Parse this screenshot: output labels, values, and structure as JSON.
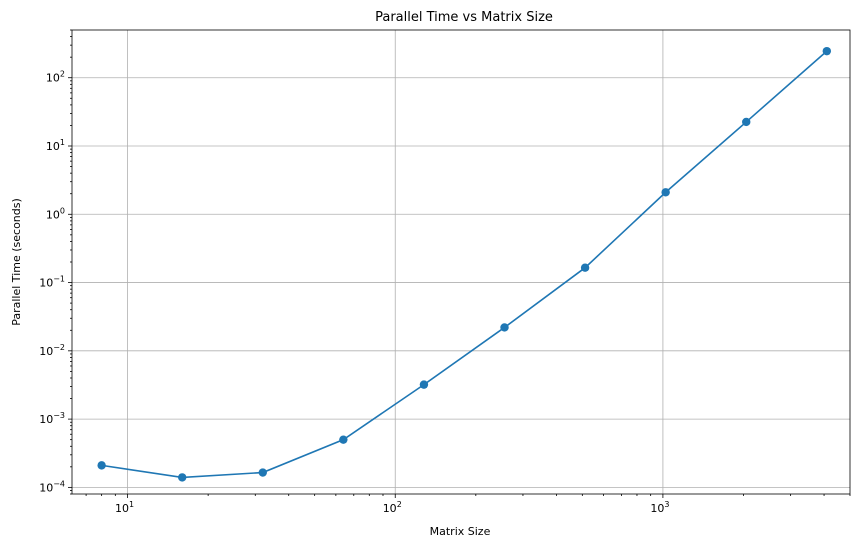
{
  "chart_data": {
    "type": "line",
    "title": "Parallel Time vs Matrix Size",
    "xlabel": "Matrix Size",
    "ylabel": "Parallel Time (seconds)",
    "x_scale": "log",
    "y_scale": "log",
    "xlim": [
      6.2,
      5000
    ],
    "ylim": [
      8e-05,
      500
    ],
    "x_ticks": [
      {
        "value": 10,
        "base": "10",
        "exp": "1"
      },
      {
        "value": 100,
        "base": "10",
        "exp": "2"
      },
      {
        "value": 1000,
        "base": "10",
        "exp": "3"
      }
    ],
    "y_ticks": [
      {
        "value": 0.0001,
        "base": "10",
        "exp": "−4"
      },
      {
        "value": 0.001,
        "base": "10",
        "exp": "−3"
      },
      {
        "value": 0.01,
        "base": "10",
        "exp": "−2"
      },
      {
        "value": 0.1,
        "base": "10",
        "exp": "−1"
      },
      {
        "value": 1,
        "base": "10",
        "exp": "0"
      },
      {
        "value": 10,
        "base": "10",
        "exp": "1"
      },
      {
        "value": 100,
        "base": "10",
        "exp": "2"
      }
    ],
    "grid": true,
    "series": [
      {
        "color": "#1f77b4",
        "marker": "circle",
        "x": [
          8,
          16,
          32,
          64,
          128,
          256,
          512,
          1024,
          2048,
          4096
        ],
        "y": [
          0.00021,
          0.00014,
          0.000165,
          0.0005,
          0.0032,
          0.022,
          0.165,
          2.1,
          22.5,
          245
        ]
      }
    ]
  }
}
